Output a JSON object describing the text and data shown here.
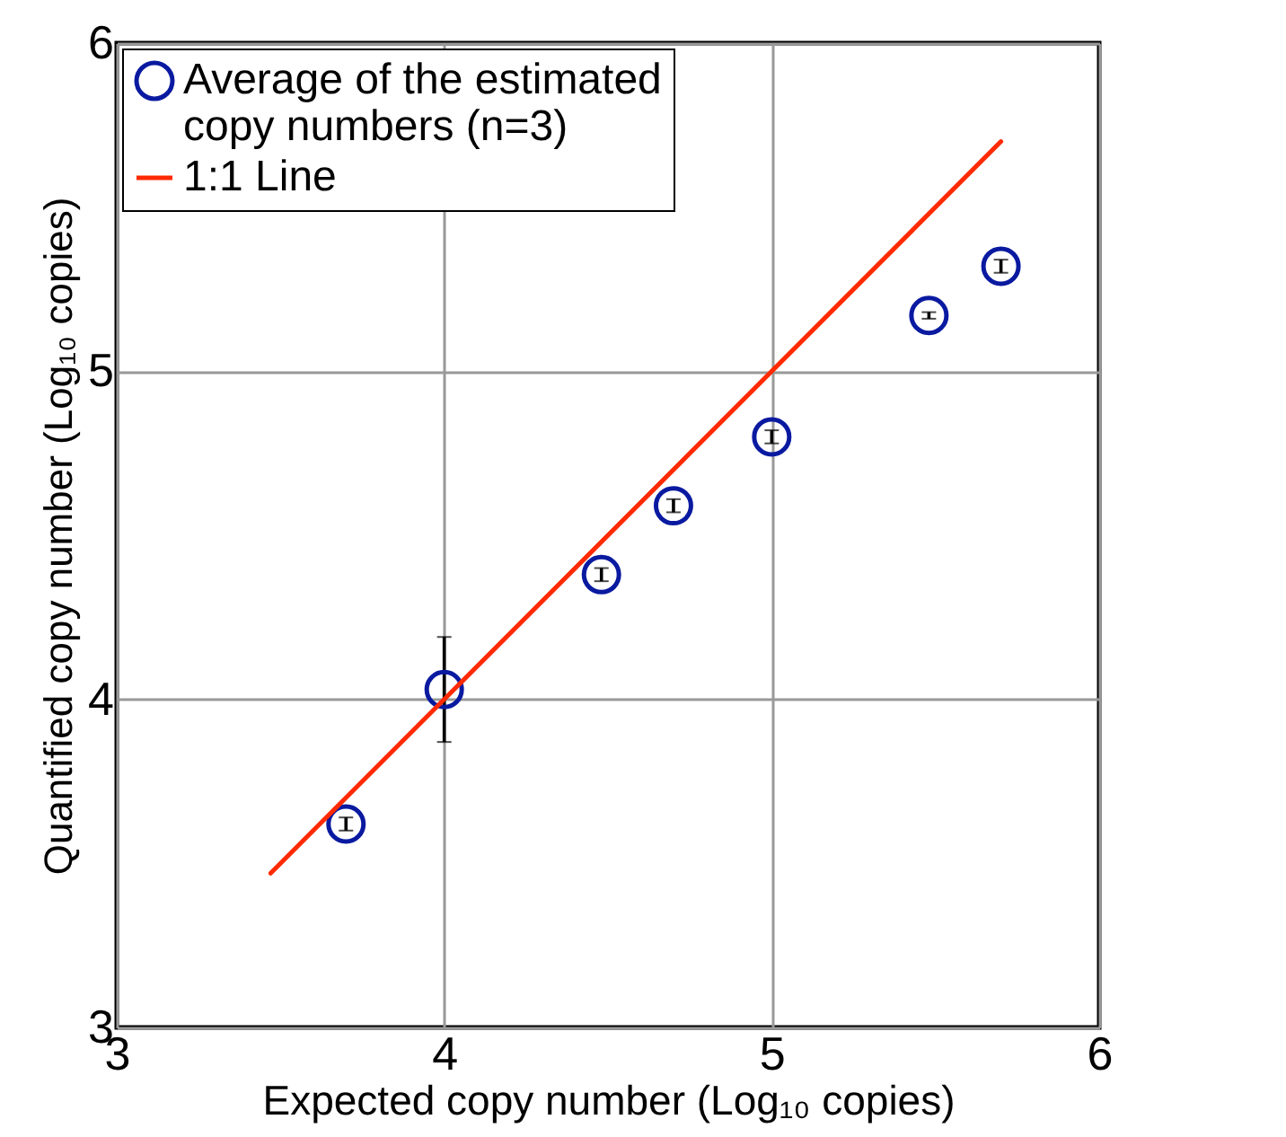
{
  "chart_data": {
    "type": "scatter",
    "xlabel": "Expected copy number (Log₁₀ copies)",
    "ylabel": "Quantified copy number (Log₁₀ copies)",
    "xlim": [
      3,
      6
    ],
    "ylim": [
      3,
      6
    ],
    "xticks": [
      3,
      4,
      5,
      6
    ],
    "yticks": [
      3,
      4,
      5,
      6
    ],
    "grid": true,
    "legend": "top left",
    "series": [
      {
        "name": "Average of the estimated copy numbers (n=3)",
        "marker": "circle",
        "color": "#0a1aa0",
        "x": [
          3.7,
          4.0,
          4.48,
          4.7,
          5.0,
          5.48,
          5.7
        ],
        "values": [
          3.62,
          4.03,
          4.38,
          4.59,
          4.8,
          5.17,
          5.32
        ],
        "errors": [
          0.02,
          0.16,
          0.02,
          0.02,
          0.02,
          0.01,
          0.02
        ]
      },
      {
        "name": "1:1 Line",
        "type": "line",
        "color": "#ff2a00",
        "x": [
          3.47,
          5.7
        ],
        "values": [
          3.47,
          5.7
        ],
        "line_style": "solid"
      }
    ]
  }
}
